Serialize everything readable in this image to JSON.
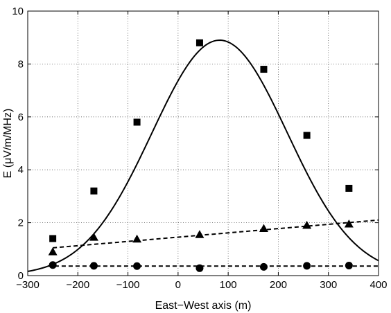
{
  "chart_data": {
    "type": "line",
    "title": "",
    "xlabel": "East−West axis (m)",
    "ylabel": "E (μV/m/MHz)",
    "xlim": [
      -300,
      400
    ],
    "ylim": [
      0,
      10
    ],
    "xticks": [
      -300,
      -200,
      -100,
      0,
      100,
      200,
      300,
      400
    ],
    "xtick_labels": [
      "−300",
      "−200",
      "−100",
      "0",
      "100",
      "200",
      "300",
      "400"
    ],
    "yticks": [
      0,
      2,
      4,
      6,
      8,
      10
    ],
    "ytick_labels": [
      "0",
      "2",
      "4",
      "6",
      "8",
      "10"
    ],
    "grid": true,
    "series": [
      {
        "marker": "square",
        "points": [
          {
            "x": -250,
            "y": 1.4
          },
          {
            "x": -168,
            "y": 3.2
          },
          {
            "x": -82,
            "y": 5.8
          },
          {
            "x": 43,
            "y": 8.8
          },
          {
            "x": 171,
            "y": 7.8
          },
          {
            "x": 257,
            "y": 5.3
          },
          {
            "x": 341,
            "y": 3.3
          }
        ],
        "fit": {
          "style": "solid",
          "form": "gaussian",
          "peak": 8.9,
          "center": 83,
          "sigma": 135,
          "x_range": [
            -300,
            400
          ]
        }
      },
      {
        "marker": "triangle",
        "points": [
          {
            "x": -250,
            "y": 0.9
          },
          {
            "x": -168,
            "y": 1.45
          },
          {
            "x": -82,
            "y": 1.38
          },
          {
            "x": 43,
            "y": 1.55
          },
          {
            "x": 171,
            "y": 1.78
          },
          {
            "x": 257,
            "y": 1.9
          },
          {
            "x": 341,
            "y": 1.95
          }
        ],
        "fit": {
          "style": "dashed",
          "form": "linear",
          "from": [
            -250,
            1.05
          ],
          "to": [
            400,
            2.1
          ]
        }
      },
      {
        "marker": "circle",
        "points": [
          {
            "x": -250,
            "y": 0.4
          },
          {
            "x": -168,
            "y": 0.37
          },
          {
            "x": -82,
            "y": 0.36
          },
          {
            "x": 43,
            "y": 0.28
          },
          {
            "x": 171,
            "y": 0.33
          },
          {
            "x": 257,
            "y": 0.37
          },
          {
            "x": 341,
            "y": 0.38
          }
        ],
        "fit": {
          "style": "dashed",
          "form": "linear",
          "from": [
            -260,
            0.36
          ],
          "to": [
            400,
            0.36
          ]
        }
      }
    ]
  }
}
